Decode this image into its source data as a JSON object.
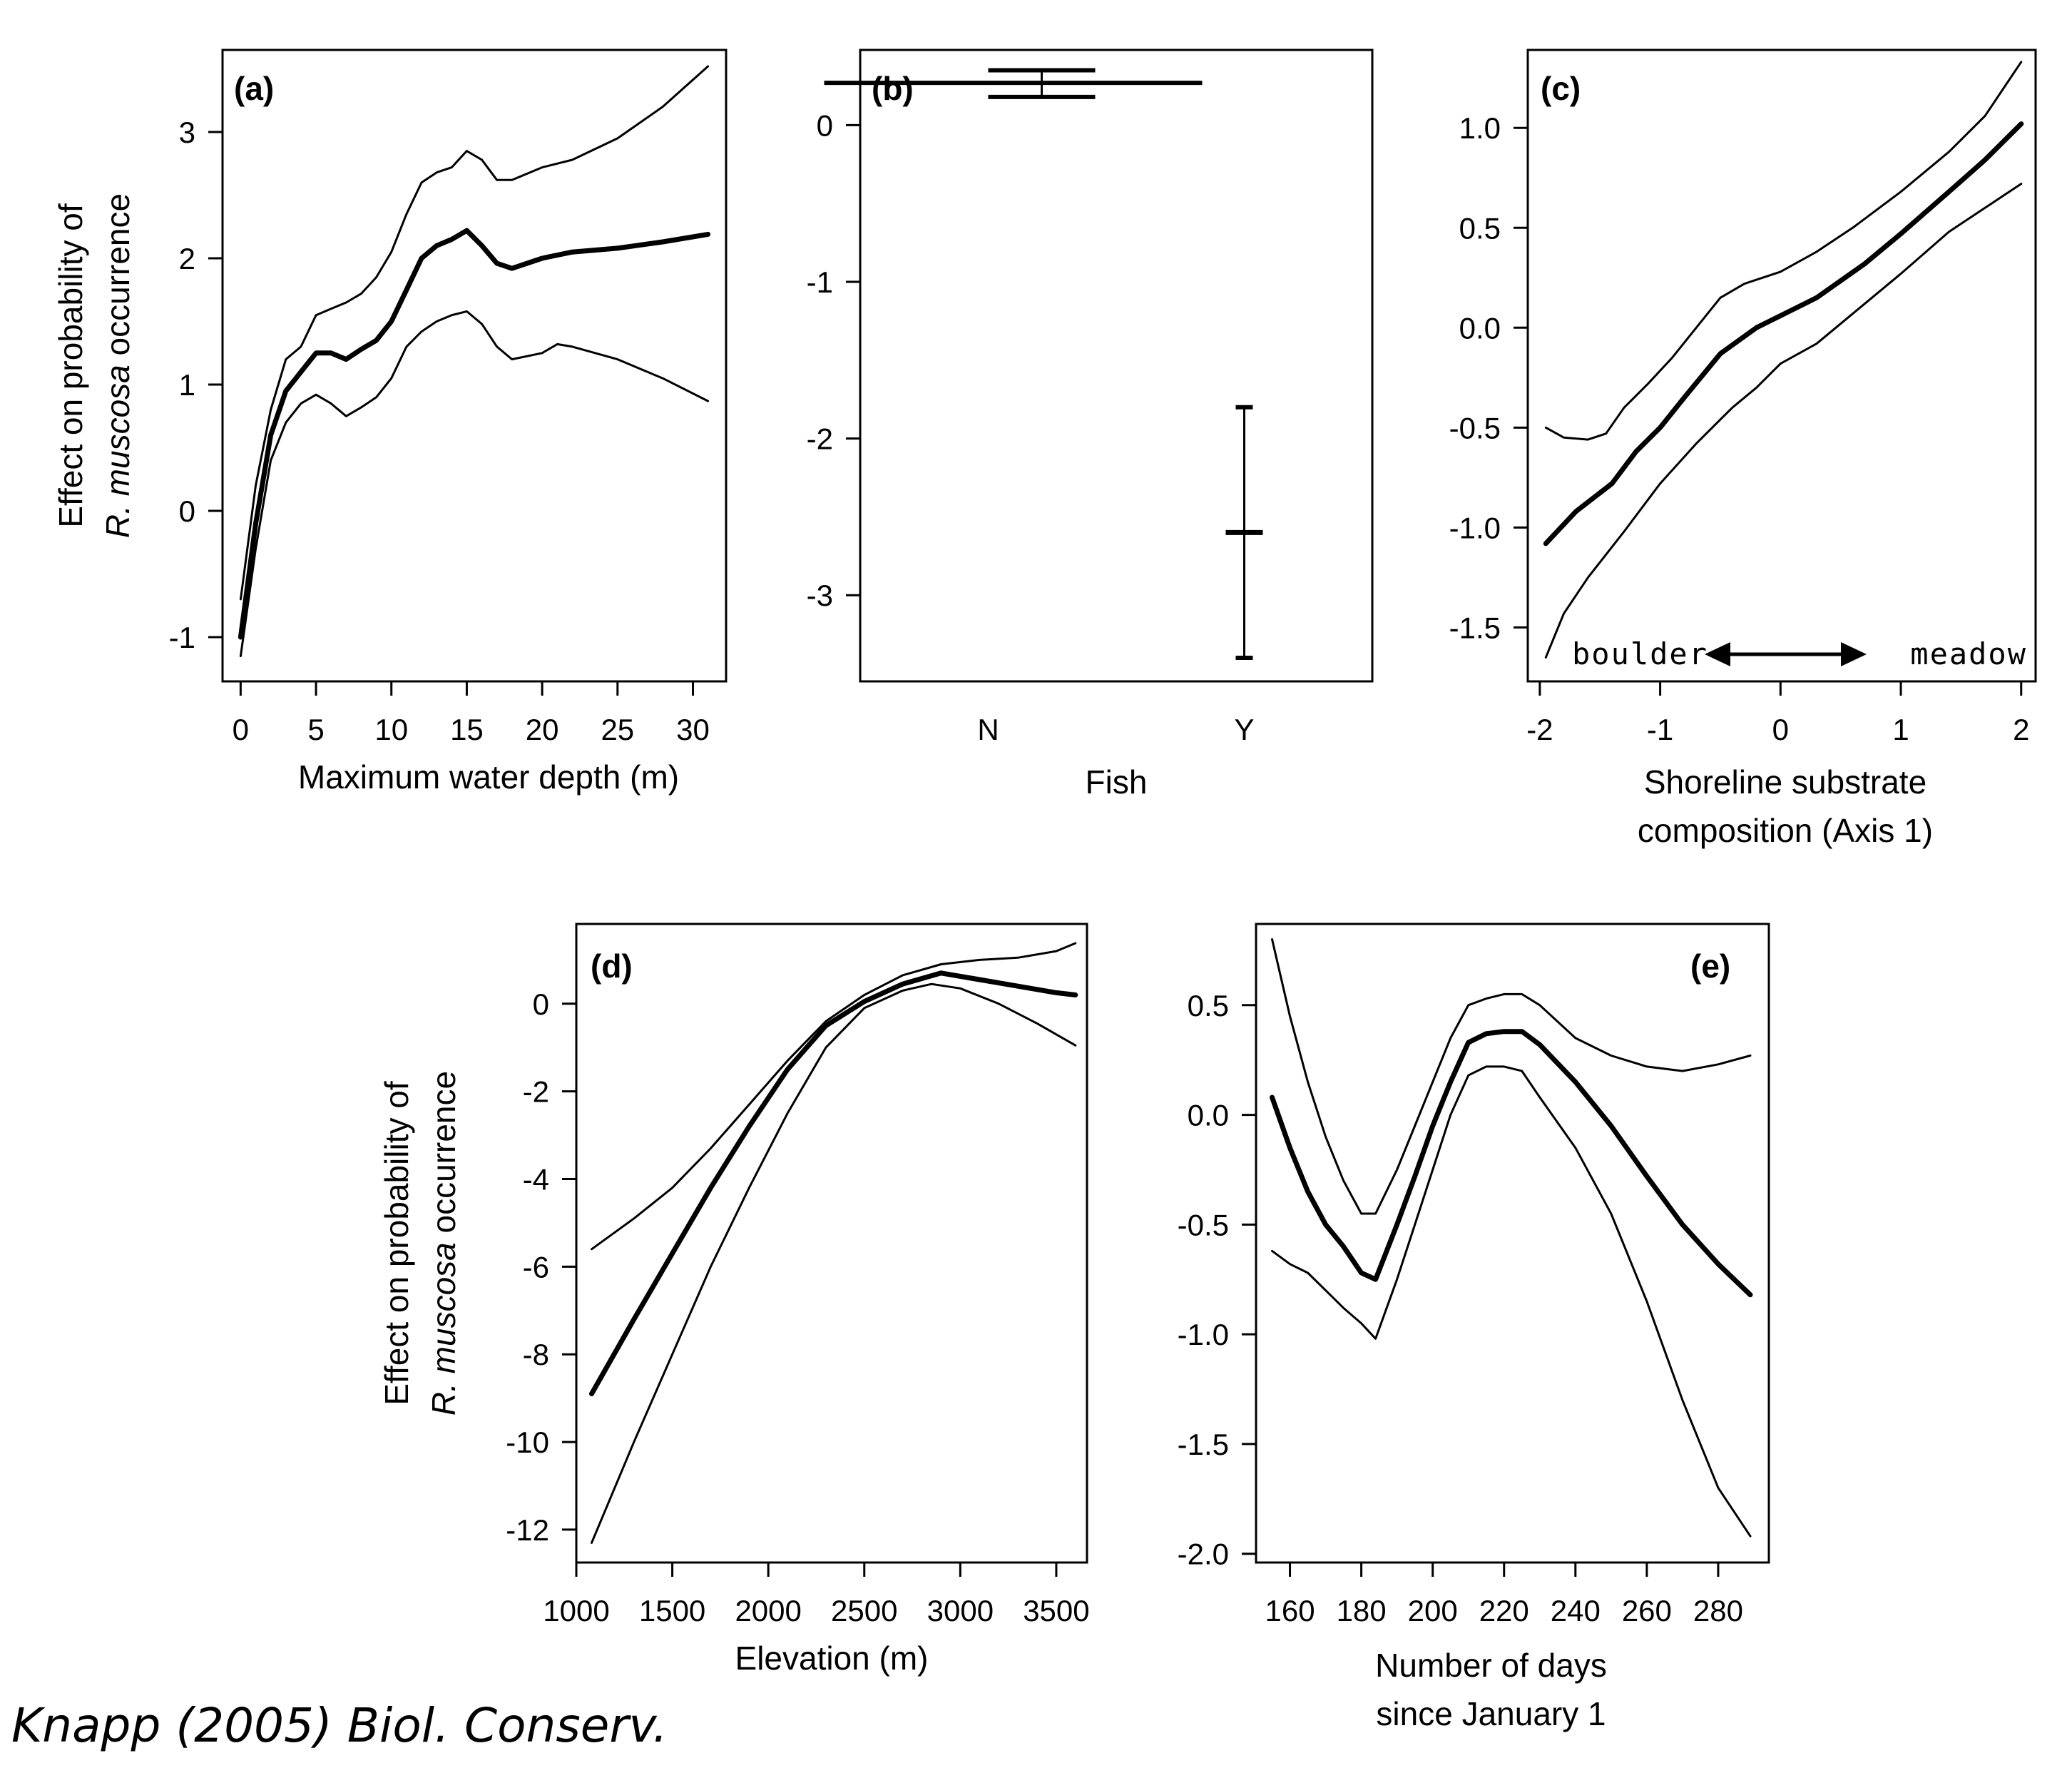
{
  "citation": "Knapp (2005) Biol. Conserv.",
  "chart_data": [
    {
      "id": "a",
      "type": "line",
      "panel_label": "(a)",
      "xlabel": "Maximum water depth (m)",
      "ylabel_line1": "Effect on probability of",
      "ylabel_line2_italic": "R. muscosa",
      "ylabel_line2_rest": " occurrence",
      "xlim": [
        -1.2,
        32.2
      ],
      "ylim": [
        -1.35,
        3.65
      ],
      "xticks": [
        0,
        5,
        10,
        15,
        20,
        25,
        30
      ],
      "yticks": [
        -1,
        0,
        1,
        2,
        3
      ],
      "series": [
        {
          "role": "upper",
          "points": [
            [
              0,
              -0.7
            ],
            [
              1,
              0.2
            ],
            [
              2,
              0.8
            ],
            [
              3,
              1.2
            ],
            [
              4,
              1.3
            ],
            [
              5,
              1.55
            ],
            [
              6,
              1.6
            ],
            [
              7,
              1.65
            ],
            [
              8,
              1.72
            ],
            [
              9,
              1.85
            ],
            [
              10,
              2.05
            ],
            [
              11,
              2.35
            ],
            [
              12,
              2.6
            ],
            [
              13,
              2.68
            ],
            [
              14,
              2.72
            ],
            [
              15,
              2.85
            ],
            [
              16,
              2.78
            ],
            [
              17,
              2.62
            ],
            [
              18,
              2.62
            ],
            [
              20,
              2.72
            ],
            [
              22,
              2.78
            ],
            [
              25,
              2.95
            ],
            [
              28,
              3.2
            ],
            [
              31,
              3.52
            ]
          ]
        },
        {
          "role": "estimate",
          "points": [
            [
              0,
              -1.0
            ],
            [
              1,
              -0.1
            ],
            [
              2,
              0.6
            ],
            [
              3,
              0.95
            ],
            [
              4,
              1.1
            ],
            [
              5,
              1.25
            ],
            [
              6,
              1.25
            ],
            [
              7,
              1.2
            ],
            [
              8,
              1.28
            ],
            [
              9,
              1.35
            ],
            [
              10,
              1.5
            ],
            [
              11,
              1.75
            ],
            [
              12,
              2.0
            ],
            [
              13,
              2.1
            ],
            [
              14,
              2.15
            ],
            [
              15,
              2.22
            ],
            [
              16,
              2.1
            ],
            [
              17,
              1.96
            ],
            [
              18,
              1.92
            ],
            [
              20,
              2.0
            ],
            [
              22,
              2.05
            ],
            [
              25,
              2.08
            ],
            [
              28,
              2.13
            ],
            [
              31,
              2.19
            ]
          ]
        },
        {
          "role": "lower",
          "points": [
            [
              0,
              -1.15
            ],
            [
              1,
              -0.3
            ],
            [
              2,
              0.4
            ],
            [
              3,
              0.7
            ],
            [
              4,
              0.85
            ],
            [
              5,
              0.92
            ],
            [
              6,
              0.85
            ],
            [
              7,
              0.75
            ],
            [
              8,
              0.82
            ],
            [
              9,
              0.9
            ],
            [
              10,
              1.05
            ],
            [
              11,
              1.3
            ],
            [
              12,
              1.42
            ],
            [
              13,
              1.5
            ],
            [
              14,
              1.55
            ],
            [
              15,
              1.58
            ],
            [
              16,
              1.48
            ],
            [
              17,
              1.3
            ],
            [
              18,
              1.2
            ],
            [
              20,
              1.25
            ],
            [
              21,
              1.32
            ],
            [
              22,
              1.3
            ],
            [
              25,
              1.2
            ],
            [
              28,
              1.05
            ],
            [
              31,
              0.87
            ]
          ]
        }
      ]
    },
    {
      "id": "b",
      "type": "errorbar",
      "panel_label": "(b)",
      "xlabel": "Fish",
      "categories": [
        "N",
        "Y"
      ],
      "xlim": [
        0.5,
        2.5
      ],
      "ylim": [
        -3.55,
        0.48
      ],
      "yticks": [
        -3,
        -2,
        -1,
        0
      ],
      "values": [
        0.27,
        -2.6
      ],
      "lower": [
        0.18,
        -3.4
      ],
      "upper": [
        0.35,
        -1.8
      ]
    },
    {
      "id": "c",
      "type": "line",
      "panel_label": "(c)",
      "xlabel_line1": "Shoreline substrate",
      "xlabel_line2": "composition (Axis 1)",
      "annotation_left": "boulder",
      "annotation_right": "meadow",
      "xlim": [
        -2.1,
        2.12
      ],
      "ylim": [
        -1.77,
        1.39
      ],
      "xticks": [
        -2,
        -1,
        0,
        1,
        2
      ],
      "yticks": [
        -1.5,
        -1.0,
        -0.5,
        0.0,
        0.5,
        1.0
      ],
      "series": [
        {
          "role": "upper",
          "points": [
            [
              -1.95,
              -0.5
            ],
            [
              -1.8,
              -0.55
            ],
            [
              -1.6,
              -0.56
            ],
            [
              -1.45,
              -0.53
            ],
            [
              -1.3,
              -0.4
            ],
            [
              -1.1,
              -0.28
            ],
            [
              -0.9,
              -0.15
            ],
            [
              -0.7,
              0.0
            ],
            [
              -0.5,
              0.15
            ],
            [
              -0.3,
              0.22
            ],
            [
              0.0,
              0.28
            ],
            [
              0.3,
              0.38
            ],
            [
              0.6,
              0.5
            ],
            [
              1.0,
              0.68
            ],
            [
              1.4,
              0.88
            ],
            [
              1.7,
              1.06
            ],
            [
              2.0,
              1.33
            ]
          ]
        },
        {
          "role": "estimate",
          "points": [
            [
              -1.95,
              -1.08
            ],
            [
              -1.7,
              -0.92
            ],
            [
              -1.4,
              -0.78
            ],
            [
              -1.2,
              -0.62
            ],
            [
              -1.0,
              -0.5
            ],
            [
              -0.8,
              -0.35
            ],
            [
              -0.5,
              -0.13
            ],
            [
              -0.2,
              0.0
            ],
            [
              0.0,
              0.06
            ],
            [
              0.3,
              0.15
            ],
            [
              0.7,
              0.32
            ],
            [
              1.0,
              0.47
            ],
            [
              1.4,
              0.68
            ],
            [
              1.7,
              0.84
            ],
            [
              2.0,
              1.02
            ]
          ]
        },
        {
          "role": "lower",
          "points": [
            [
              -1.95,
              -1.65
            ],
            [
              -1.8,
              -1.43
            ],
            [
              -1.6,
              -1.25
            ],
            [
              -1.3,
              -1.02
            ],
            [
              -1.0,
              -0.78
            ],
            [
              -0.7,
              -0.58
            ],
            [
              -0.4,
              -0.4
            ],
            [
              -0.2,
              -0.3
            ],
            [
              0.0,
              -0.18
            ],
            [
              0.3,
              -0.08
            ],
            [
              0.7,
              0.12
            ],
            [
              1.0,
              0.27
            ],
            [
              1.4,
              0.48
            ],
            [
              1.7,
              0.6
            ],
            [
              2.0,
              0.72
            ]
          ]
        }
      ]
    },
    {
      "id": "d",
      "type": "line",
      "panel_label": "(d)",
      "xlabel": "Elevation (m)",
      "ylabel_line1": "Effect on probability of",
      "ylabel_line2_italic": "R. muscosa",
      "ylabel_line2_rest": " occurrence",
      "xlim": [
        1000,
        3660
      ],
      "ylim": [
        -12.75,
        1.82
      ],
      "xticks": [
        1000,
        1500,
        2000,
        2500,
        3000,
        3500
      ],
      "yticks": [
        -12,
        -10,
        -8,
        -6,
        -4,
        -2,
        0
      ],
      "series": [
        {
          "role": "upper",
          "points": [
            [
              1080,
              -5.6
            ],
            [
              1300,
              -4.9
            ],
            [
              1500,
              -4.2
            ],
            [
              1700,
              -3.3
            ],
            [
              1900,
              -2.3
            ],
            [
              2100,
              -1.3
            ],
            [
              2300,
              -0.4
            ],
            [
              2500,
              0.2
            ],
            [
              2700,
              0.65
            ],
            [
              2900,
              0.9
            ],
            [
              3100,
              1.0
            ],
            [
              3300,
              1.05
            ],
            [
              3500,
              1.2
            ],
            [
              3600,
              1.38
            ]
          ]
        },
        {
          "role": "estimate",
          "points": [
            [
              1080,
              -8.9
            ],
            [
              1300,
              -7.2
            ],
            [
              1500,
              -5.7
            ],
            [
              1700,
              -4.2
            ],
            [
              1900,
              -2.8
            ],
            [
              2100,
              -1.5
            ],
            [
              2300,
              -0.5
            ],
            [
              2500,
              0.05
            ],
            [
              2700,
              0.45
            ],
            [
              2900,
              0.7
            ],
            [
              3100,
              0.55
            ],
            [
              3300,
              0.4
            ],
            [
              3500,
              0.25
            ],
            [
              3600,
              0.2
            ]
          ]
        },
        {
          "role": "lower",
          "points": [
            [
              1080,
              -12.3
            ],
            [
              1300,
              -10.0
            ],
            [
              1500,
              -8.0
            ],
            [
              1700,
              -6.0
            ],
            [
              1900,
              -4.2
            ],
            [
              2100,
              -2.5
            ],
            [
              2300,
              -1.0
            ],
            [
              2500,
              -0.1
            ],
            [
              2700,
              0.3
            ],
            [
              2850,
              0.45
            ],
            [
              3000,
              0.35
            ],
            [
              3200,
              0.0
            ],
            [
              3400,
              -0.45
            ],
            [
              3600,
              -0.95
            ]
          ]
        }
      ]
    },
    {
      "id": "e",
      "type": "line",
      "panel_label": "(e)",
      "xlabel_line1": "Number of days",
      "xlabel_line2": "since January 1",
      "xlim": [
        150.5,
        294.2
      ],
      "ylim": [
        -2.04,
        0.87
      ],
      "xticks": [
        160,
        180,
        200,
        220,
        240,
        260,
        280
      ],
      "yticks": [
        -2.0,
        -1.5,
        -1.0,
        -0.5,
        0.0,
        0.5
      ],
      "series": [
        {
          "role": "upper",
          "points": [
            [
              155,
              0.8
            ],
            [
              160,
              0.45
            ],
            [
              165,
              0.15
            ],
            [
              170,
              -0.1
            ],
            [
              175,
              -0.3
            ],
            [
              180,
              -0.45
            ],
            [
              184,
              -0.45
            ],
            [
              190,
              -0.25
            ],
            [
              195,
              -0.05
            ],
            [
              200,
              0.15
            ],
            [
              205,
              0.35
            ],
            [
              210,
              0.5
            ],
            [
              215,
              0.53
            ],
            [
              220,
              0.55
            ],
            [
              225,
              0.55
            ],
            [
              230,
              0.5
            ],
            [
              240,
              0.35
            ],
            [
              250,
              0.27
            ],
            [
              260,
              0.22
            ],
            [
              270,
              0.2
            ],
            [
              280,
              0.23
            ],
            [
              289,
              0.27
            ]
          ]
        },
        {
          "role": "estimate",
          "points": [
            [
              155,
              0.08
            ],
            [
              160,
              -0.15
            ],
            [
              165,
              -0.35
            ],
            [
              170,
              -0.5
            ],
            [
              175,
              -0.6
            ],
            [
              180,
              -0.72
            ],
            [
              184,
              -0.75
            ],
            [
              190,
              -0.5
            ],
            [
              195,
              -0.28
            ],
            [
              200,
              -0.05
            ],
            [
              205,
              0.15
            ],
            [
              210,
              0.33
            ],
            [
              215,
              0.37
            ],
            [
              220,
              0.38
            ],
            [
              225,
              0.38
            ],
            [
              230,
              0.32
            ],
            [
              240,
              0.15
            ],
            [
              250,
              -0.05
            ],
            [
              260,
              -0.28
            ],
            [
              270,
              -0.5
            ],
            [
              280,
              -0.68
            ],
            [
              289,
              -0.82
            ]
          ]
        },
        {
          "role": "lower",
          "points": [
            [
              155,
              -0.62
            ],
            [
              160,
              -0.68
            ],
            [
              165,
              -0.72
            ],
            [
              170,
              -0.8
            ],
            [
              175,
              -0.88
            ],
            [
              180,
              -0.95
            ],
            [
              184,
              -1.02
            ],
            [
              190,
              -0.75
            ],
            [
              195,
              -0.5
            ],
            [
              200,
              -0.25
            ],
            [
              205,
              0.0
            ],
            [
              210,
              0.18
            ],
            [
              215,
              0.22
            ],
            [
              220,
              0.22
            ],
            [
              225,
              0.2
            ],
            [
              230,
              0.08
            ],
            [
              240,
              -0.15
            ],
            [
              250,
              -0.45
            ],
            [
              260,
              -0.85
            ],
            [
              270,
              -1.3
            ],
            [
              280,
              -1.7
            ],
            [
              289,
              -1.92
            ]
          ]
        }
      ]
    }
  ]
}
